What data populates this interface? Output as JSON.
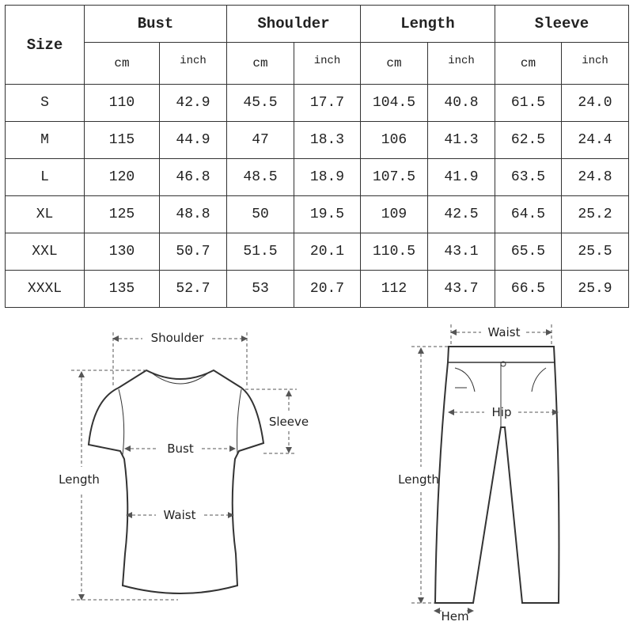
{
  "table": {
    "size_header": "Size",
    "groups": [
      "Bust",
      "Shoulder",
      "Length",
      "Sleeve"
    ],
    "units": [
      "cm",
      "inch"
    ],
    "rows": [
      [
        "S",
        "110",
        "42.9",
        "45.5",
        "17.7",
        "104.5",
        "40.8",
        "61.5",
        "24.0"
      ],
      [
        "M",
        "115",
        "44.9",
        "47",
        "18.3",
        "106",
        "41.3",
        "62.5",
        "24.4"
      ],
      [
        "L",
        "120",
        "46.8",
        "48.5",
        "18.9",
        "107.5",
        "41.9",
        "63.5",
        "24.8"
      ],
      [
        "XL",
        "125",
        "48.8",
        "50",
        "19.5",
        "109",
        "42.5",
        "64.5",
        "25.2"
      ],
      [
        "XXL",
        "130",
        "50.7",
        "51.5",
        "20.1",
        "110.5",
        "43.1",
        "65.5",
        "25.5"
      ],
      [
        "XXXL",
        "135",
        "52.7",
        "53",
        "20.7",
        "112",
        "43.7",
        "66.5",
        "25.9"
      ]
    ]
  },
  "shirt_diagram": {
    "shoulder": "Shoulder",
    "sleeve": "Sleeve",
    "bust": "Bust",
    "length": "Length",
    "waist": "Waist"
  },
  "pants_diagram": {
    "waist": "Waist",
    "hip": "Hip",
    "length": "Length",
    "hem": "Hem"
  }
}
